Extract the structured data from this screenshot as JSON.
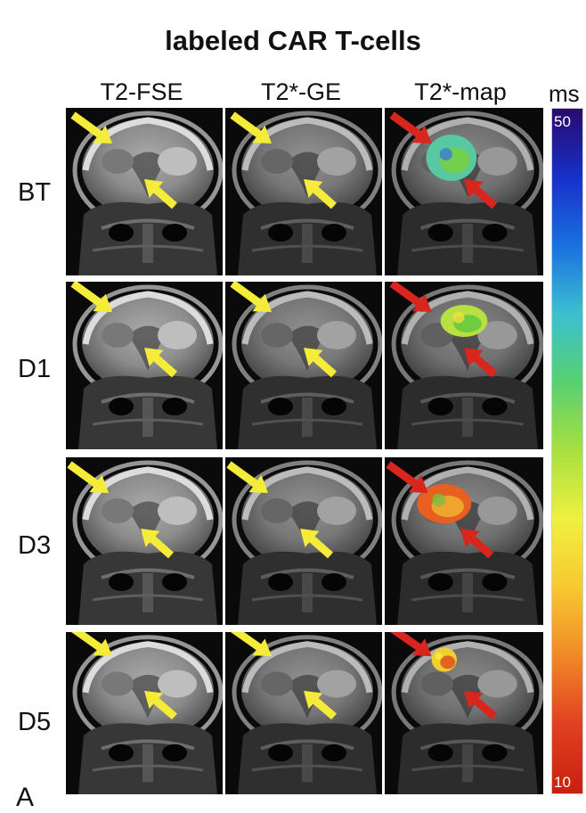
{
  "figure": {
    "title": "labeled CAR T-cells",
    "columns": [
      "T2-FSE",
      "T2*-GE",
      "T2*-map"
    ],
    "rows": [
      "BT",
      "D1",
      "D3",
      "D5"
    ],
    "colorbar": {
      "unit": "ms",
      "max_label": "50",
      "min_label": "10",
      "max_value": 50,
      "min_value": 10,
      "colors": [
        "#2a0a6e",
        "#1630c8",
        "#1a70e0",
        "#3cc0d0",
        "#58d070",
        "#a8e040",
        "#f0f040",
        "#f8c830",
        "#f08828",
        "#e04020",
        "#c82010"
      ]
    },
    "arrow_colors": {
      "anatomical": "#f5ec3a",
      "map": "#d8251e"
    },
    "corner_label": "A"
  }
}
